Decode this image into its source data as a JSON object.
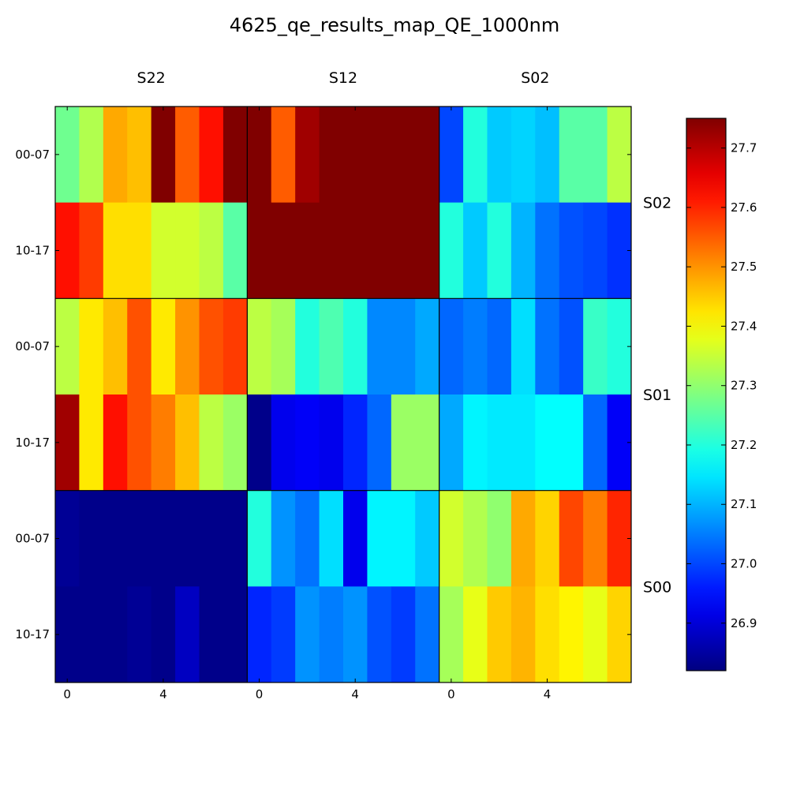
{
  "chart_data": {
    "type": "heatmap",
    "title": "4625_qe_results_map_QE_1000nm",
    "colormap": "jet",
    "vmin": 26.82,
    "vmax": 27.75,
    "column_groups": [
      "S22",
      "S12",
      "S02"
    ],
    "row_groups": [
      "S02",
      "S01",
      "S00"
    ],
    "row_tick_labels": [
      "00-07",
      "10-17"
    ],
    "column_tick_labels": [
      "0",
      "4"
    ],
    "colorbar_ticks": [
      "26.9",
      "27.0",
      "27.1",
      "27.2",
      "27.3",
      "27.4",
      "27.5",
      "27.6",
      "27.7"
    ],
    "values": [
      [
        27.27,
        27.33,
        27.48,
        27.46,
        27.75,
        27.55,
        27.62,
        27.75,
        27.75,
        27.55,
        27.72,
        27.75,
        27.75,
        27.75,
        27.75,
        27.75,
        27.0,
        27.2,
        27.12,
        27.13,
        27.11,
        27.25,
        27.25,
        27.34
      ],
      [
        27.62,
        27.58,
        27.43,
        27.43,
        27.36,
        27.36,
        27.34,
        27.25,
        27.75,
        27.75,
        27.75,
        27.75,
        27.75,
        27.75,
        27.75,
        27.75,
        27.2,
        27.12,
        27.2,
        27.1,
        27.04,
        27.01,
        27.0,
        26.98
      ],
      [
        27.34,
        27.42,
        27.46,
        27.56,
        27.42,
        27.5,
        27.56,
        27.58,
        27.34,
        27.32,
        27.2,
        27.24,
        27.2,
        27.06,
        27.06,
        27.09,
        27.03,
        27.05,
        27.03,
        27.14,
        27.04,
        27.01,
        27.22,
        27.2
      ],
      [
        27.72,
        27.42,
        27.62,
        27.56,
        27.52,
        27.46,
        27.34,
        27.31,
        26.83,
        26.92,
        26.93,
        26.92,
        26.97,
        27.03,
        27.31,
        27.31,
        27.09,
        27.16,
        27.15,
        27.15,
        27.17,
        27.17,
        27.03,
        26.93
      ],
      [
        26.84,
        26.83,
        26.83,
        26.83,
        26.83,
        26.83,
        26.83,
        26.83,
        27.2,
        27.07,
        27.04,
        27.14,
        26.92,
        27.16,
        27.16,
        27.12,
        27.36,
        27.33,
        27.3,
        27.48,
        27.44,
        27.57,
        27.52,
        27.6
      ],
      [
        26.83,
        26.83,
        26.83,
        26.84,
        26.83,
        26.88,
        26.83,
        26.83,
        26.97,
        26.99,
        27.07,
        27.05,
        27.07,
        27.01,
        26.99,
        27.04,
        27.32,
        27.38,
        27.45,
        27.47,
        27.43,
        27.41,
        27.38,
        27.44
      ]
    ]
  }
}
